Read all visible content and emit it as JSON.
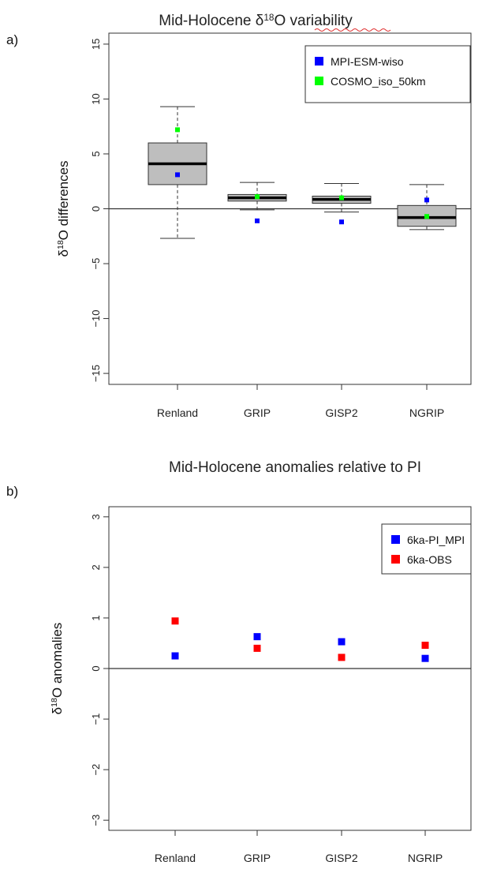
{
  "chart_data": [
    {
      "panel": "a)",
      "type": "box",
      "title": "Mid-Holocene δ18O variability",
      "ylabel": "δ18O differences",
      "xlabel": "",
      "ylim": [
        -16,
        16
      ],
      "yticks": [
        -15,
        -10,
        -5,
        0,
        5,
        10,
        15
      ],
      "categories": [
        "Renland",
        "GRIP",
        "GISP2",
        "NGRIP"
      ],
      "boxes": [
        {
          "whisker_low": -2.7,
          "q1": 2.2,
          "median": 4.1,
          "q3": 6.0,
          "whisker_high": 9.3
        },
        {
          "whisker_low": -0.1,
          "q1": 0.7,
          "median": 1.0,
          "q3": 1.3,
          "whisker_high": 2.4
        },
        {
          "whisker_low": -0.3,
          "q1": 0.5,
          "median": 0.85,
          "q3": 1.15,
          "whisker_high": 2.3
        },
        {
          "whisker_low": -1.9,
          "q1": -1.6,
          "median": -0.8,
          "q3": 0.3,
          "whisker_high": 2.2
        }
      ],
      "series": [
        {
          "name": "MPI-ESM-wiso",
          "color": "#0000ff",
          "values": [
            3.1,
            -1.1,
            -1.2,
            0.8
          ]
        },
        {
          "name": "COSMO_iso_50km",
          "color": "#00ff00",
          "values": [
            7.2,
            1.1,
            1.0,
            -0.7
          ]
        }
      ],
      "legend": "top-right"
    },
    {
      "panel": "b)",
      "type": "scatter",
      "title": "Mid-Holocene anomalies relative to PI",
      "ylabel": "δ18O anomalies",
      "xlabel": "",
      "ylim": [
        -3.2,
        3.2
      ],
      "yticks": [
        -3,
        -2,
        -1,
        0,
        1,
        2,
        3
      ],
      "categories": [
        "Renland",
        "GRIP",
        "GISP2",
        "NGRIP"
      ],
      "series": [
        {
          "name": "6ka-PI_MPI",
          "color": "#0000ff",
          "values": [
            0.25,
            0.63,
            0.53,
            0.2
          ]
        },
        {
          "name": "6ka-OBS",
          "color": "#ff0000",
          "values": [
            0.94,
            0.4,
            0.22,
            0.46
          ]
        }
      ],
      "legend": "top-right"
    }
  ]
}
